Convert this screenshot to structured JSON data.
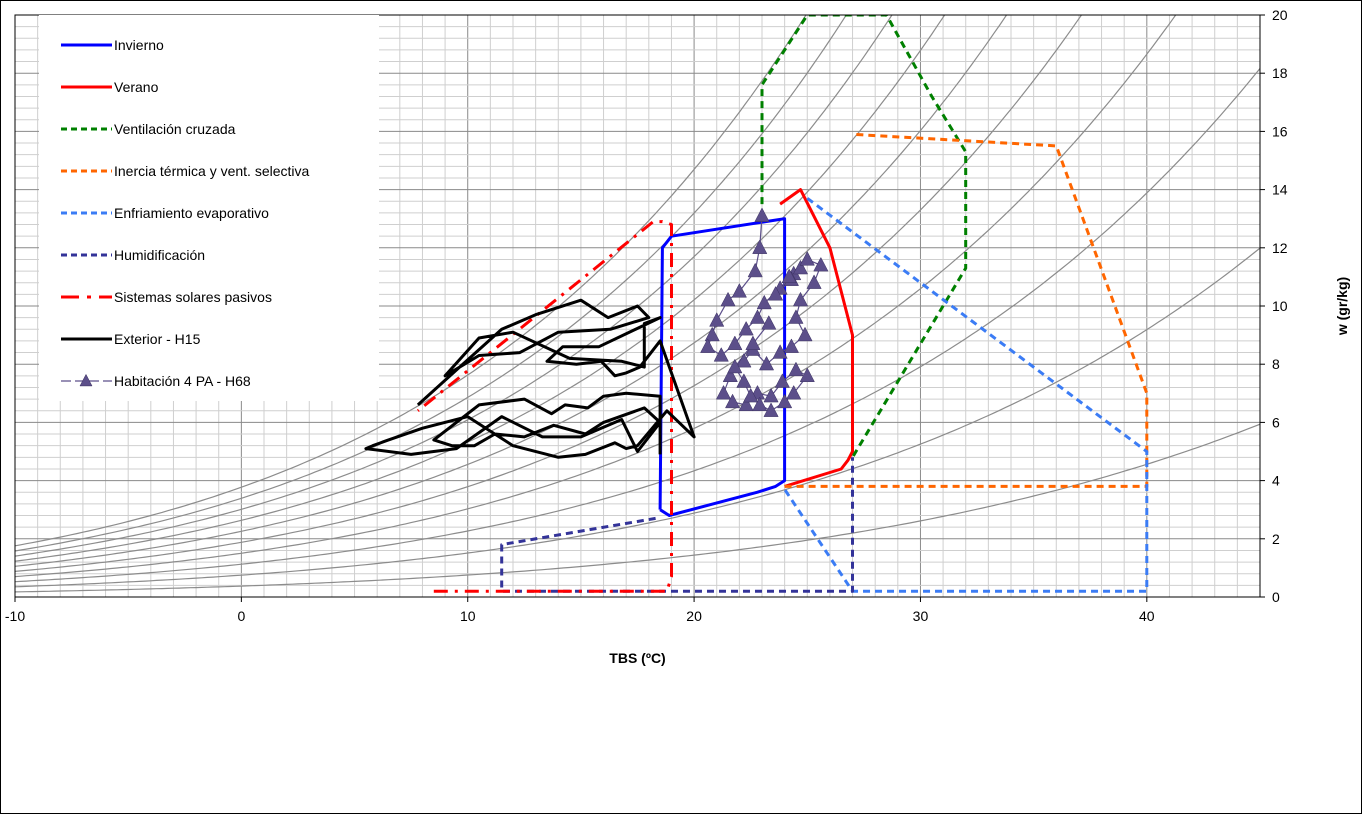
{
  "chart_data": {
    "type": "line",
    "title": "",
    "xlabel": "TBS (ºC)",
    "ylabel": "w (gr/kg)",
    "xlim": [
      -10,
      45
    ],
    "ylim": [
      0,
      20
    ],
    "x_ticks": [
      -10,
      0,
      10,
      20,
      30,
      40
    ],
    "y_ticks": [
      0,
      2,
      4,
      6,
      8,
      10,
      12,
      14,
      16,
      18,
      20
    ],
    "grid": true,
    "legend_position": "top-left",
    "background_curves": {
      "relative_humidity_percent": [
        10,
        20,
        30,
        40,
        50,
        60,
        70,
        80,
        90,
        100
      ],
      "color": "#8c8c8c"
    },
    "series": [
      {
        "name": "Invierno",
        "color": "#0000ff",
        "style": "solid",
        "x": [
          18.5,
          18.6,
          19.0,
          24.0,
          24.0,
          23.6,
          22.8,
          18.9,
          18.5
        ],
        "y": [
          3.0,
          12.0,
          12.4,
          13.0,
          4.0,
          3.8,
          3.6,
          2.8,
          3.0
        ]
      },
      {
        "name": "Verano",
        "color": "#ff0000",
        "style": "solid",
        "x": [
          23.8,
          24.7,
          26.0,
          27.0,
          27.0,
          26.8,
          26.5,
          24.0
        ],
        "y": [
          13.5,
          14.0,
          12.0,
          9.0,
          5.0,
          4.7,
          4.4,
          3.8
        ]
      },
      {
        "name": "Ventilación cruzada",
        "color": "#008000",
        "style": "dashed",
        "x": [
          23.0,
          23.0,
          25.0,
          28.5,
          30.5,
          32.0,
          32.0,
          27.0
        ],
        "y": [
          13.5,
          17.6,
          20.0,
          20.0,
          17.2,
          15.3,
          11.3,
          4.8
        ]
      },
      {
        "name": "Inercia térmica y vent. selectiva",
        "color": "#ff6600",
        "style": "dashed",
        "x": [
          24.0,
          40.0,
          40.0,
          36.0,
          27.0,
          27.0
        ],
        "y": [
          3.8,
          3.8,
          7.0,
          15.5,
          15.9,
          15.9
        ]
      },
      {
        "name": "Enfriamiento evaporativo",
        "color": "#3b7cf5",
        "style": "dashed",
        "x": [
          25.0,
          40.0,
          40.0,
          27.0,
          24.0
        ],
        "y": [
          13.7,
          5.0,
          0.2,
          0.2,
          3.7
        ]
      },
      {
        "name": "Humidificación",
        "color": "#333399",
        "style": "dashed",
        "x": [
          18.3,
          11.5,
          11.5,
          27.0,
          27.0
        ],
        "y": [
          2.7,
          1.8,
          0.2,
          0.2,
          4.8
        ]
      },
      {
        "name": "Sistemas solares pasivos",
        "color": "#ff0000",
        "style": "dashdot",
        "x": [
          8.5,
          18.8,
          19.0,
          19.0,
          18.6,
          18.2,
          7.8
        ],
        "y": [
          0.2,
          0.2,
          0.7,
          12.8,
          12.9,
          12.9,
          6.4
        ]
      },
      {
        "name": "Exterior - H15",
        "color": "#000000",
        "style": "solid",
        "x": [
          7.8,
          9.5,
          11.5,
          13.0,
          15.0,
          16.2,
          17.5,
          18.0,
          16.3,
          14.0,
          12.3,
          10.5,
          9.0,
          10.5,
          12.0,
          14.5,
          16.8,
          17.8,
          17.8,
          18.5,
          15.8,
          14.2,
          13.5,
          14.8,
          15.9,
          16.5,
          17.0,
          17.6,
          18.5,
          20.0,
          18.8,
          17.5,
          17.0,
          16.5,
          15.2,
          14.0,
          12.0,
          10.0,
          8.0,
          6.5,
          5.8,
          5.5,
          7.5,
          9.5,
          11.5,
          13.3,
          15.0,
          16.8,
          17.5,
          18.5,
          17.8,
          16.0,
          15.2,
          13.8,
          12.5,
          11.2,
          10.3,
          9.3,
          8.5,
          9.5,
          10.5,
          12.5,
          13.7,
          14.3,
          15.3,
          16.0,
          17.0,
          18.5,
          18.5
        ],
        "y": [
          6.6,
          7.8,
          9.2,
          9.7,
          10.2,
          9.6,
          10.0,
          9.6,
          9.2,
          9.1,
          8.4,
          8.3,
          7.6,
          8.9,
          9.1,
          8.2,
          8.1,
          7.9,
          9.4,
          9.6,
          8.6,
          8.6,
          8.1,
          8.0,
          8.1,
          7.6,
          7.7,
          7.9,
          8.8,
          5.5,
          6.4,
          5.2,
          5.1,
          5.3,
          4.9,
          4.8,
          5.2,
          6.2,
          5.8,
          5.4,
          5.2,
          5.1,
          4.9,
          5.1,
          6.2,
          5.5,
          5.5,
          6.1,
          5.0,
          6.0,
          6.5,
          6.0,
          5.6,
          5.9,
          5.5,
          5.6,
          5.2,
          5.2,
          5.4,
          6.0,
          6.6,
          6.8,
          6.3,
          6.6,
          6.5,
          6.9,
          7.0,
          6.9,
          4.9
        ]
      },
      {
        "name": "Habitación 4 PA - H68",
        "color": "#5c4f8a",
        "style": "solid-triangle-markers",
        "x": [
          23.0,
          22.9,
          22.7,
          22.0,
          21.5,
          21.0,
          20.8,
          20.6,
          21.2,
          21.8,
          22.3,
          22.8,
          23.1,
          23.8,
          24.4,
          24.7,
          24.3,
          23.6,
          24.2,
          25.0,
          25.6,
          25.3,
          24.7,
          24.5,
          24.9,
          24.3,
          23.8,
          23.2,
          22.6,
          22.2,
          21.6,
          21.3,
          21.7,
          22.3,
          22.8,
          23.4,
          23.9,
          24.5,
          25.0,
          24.4,
          24.0,
          23.4,
          22.9,
          22.5,
          22.2,
          21.8,
          22.6,
          23.3
        ],
        "y": [
          13.1,
          12.0,
          11.2,
          10.5,
          10.2,
          9.5,
          9.0,
          8.6,
          8.3,
          8.7,
          9.2,
          9.6,
          10.1,
          10.6,
          11.1,
          11.3,
          10.9,
          10.4,
          11.0,
          11.6,
          11.4,
          10.8,
          10.2,
          9.6,
          9.0,
          8.6,
          8.4,
          8.0,
          8.5,
          8.1,
          7.6,
          7.0,
          6.7,
          6.6,
          7.0,
          6.9,
          7.4,
          7.8,
          7.6,
          7.0,
          6.7,
          6.4,
          6.6,
          6.9,
          7.4,
          7.9,
          8.7,
          9.4
        ]
      }
    ]
  }
}
